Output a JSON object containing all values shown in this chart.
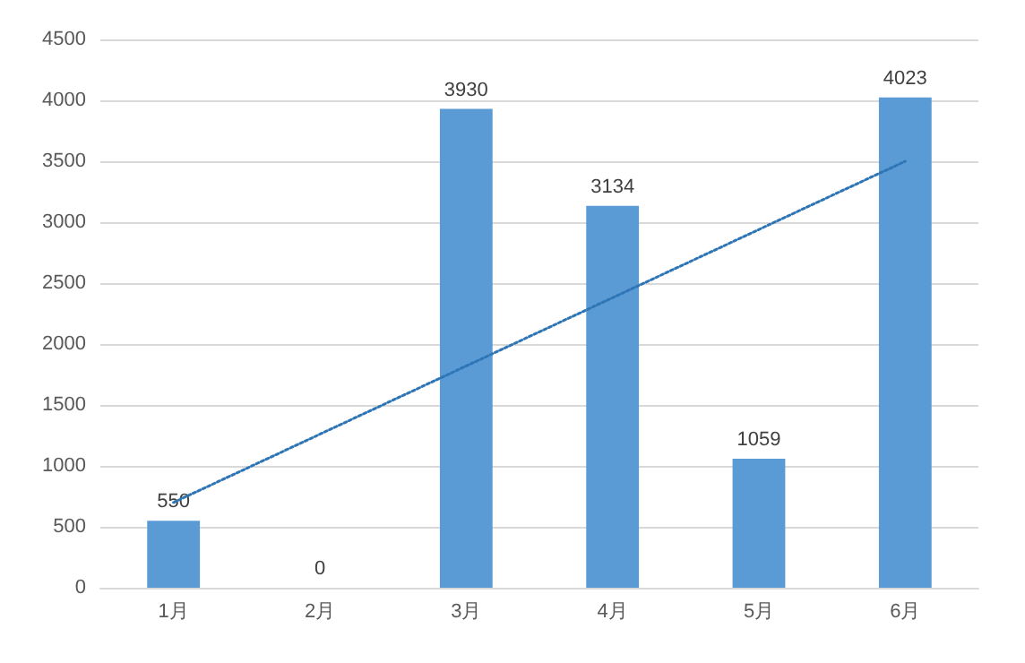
{
  "chart_data": {
    "type": "bar",
    "categories": [
      "1月",
      "2月",
      "3月",
      "4月",
      "5月",
      "6月"
    ],
    "series": [
      {
        "color": "#5b9bd5",
        "values": [
          550,
          0,
          3930,
          3134,
          1059,
          4023
        ],
        "value_labels": [
          "550",
          "0",
          "3930",
          "3134",
          "1059",
          "4023"
        ]
      },
      {
        "type": "line",
        "x": [
          "1月",
          "6月"
        ],
        "values": [
          700,
          3500
        ],
        "color": "#2e75b6",
        "line_style": "dotted",
        "marker": "none"
      }
    ],
    "ylim": [
      0,
      4500
    ],
    "yticks": [
      0,
      500,
      1000,
      1500,
      2000,
      2500,
      3000,
      3500,
      4000,
      4500
    ],
    "grid": "y"
  }
}
